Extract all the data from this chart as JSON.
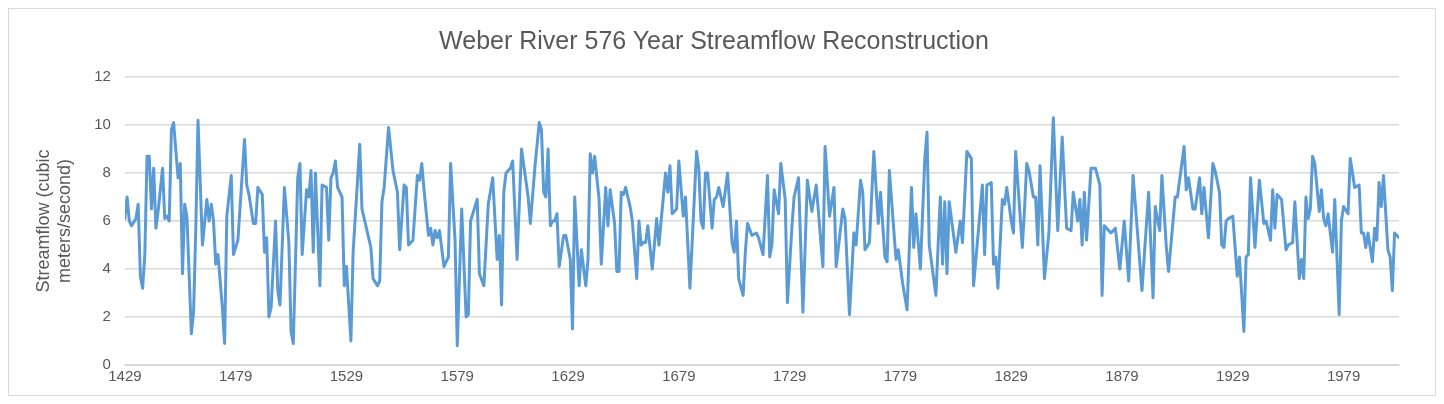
{
  "chart_data": {
    "type": "line",
    "title": "Weber River 576 Year Streamflow Reconstruction",
    "ylabel": "Streamflow (cubic meters/second)",
    "xlim": [
      1429,
      2004
    ],
    "xticks": [
      1429,
      1479,
      1529,
      1579,
      1629,
      1679,
      1729,
      1779,
      1829,
      1879,
      1929,
      1979
    ],
    "ylim": [
      0,
      12
    ],
    "yticks": [
      0,
      2,
      4,
      6,
      8,
      10,
      12
    ],
    "grid": "y",
    "legend": false,
    "marker": "none",
    "line_style": "solid",
    "series": [
      {
        "color": "#5b9bd5",
        "x": [
          1429,
          1430,
          1431,
          1432,
          1434,
          1435,
          1436,
          1437,
          1438,
          1439,
          1440,
          1441,
          1442,
          1443,
          1444,
          1446,
          1447,
          1448,
          1449,
          1450,
          1451,
          1453,
          1454,
          1455,
          1456,
          1457,
          1459,
          1460,
          1461,
          1462,
          1464,
          1466,
          1467,
          1468,
          1469,
          1470,
          1471,
          1473,
          1474,
          1475,
          1477,
          1478,
          1480,
          1483,
          1484,
          1485,
          1487,
          1488,
          1489,
          1491,
          1492,
          1493,
          1494,
          1495,
          1497,
          1498,
          1499,
          1501,
          1503,
          1504,
          1505,
          1507,
          1508,
          1509,
          1511,
          1512,
          1513,
          1514,
          1515,
          1517,
          1518,
          1520,
          1521,
          1522,
          1523,
          1524,
          1525,
          1527,
          1528,
          1529,
          1531,
          1532,
          1535,
          1536,
          1540,
          1541,
          1543,
          1544,
          1545,
          1546,
          1548,
          1550,
          1552,
          1553,
          1555,
          1556,
          1557,
          1559,
          1561,
          1562,
          1563,
          1564,
          1566,
          1567,
          1568,
          1569,
          1570,
          1571,
          1573,
          1575,
          1576,
          1578,
          1579,
          1581,
          1583,
          1584,
          1585,
          1587,
          1588,
          1589,
          1591,
          1593,
          1595,
          1597,
          1598,
          1599,
          1600,
          1601,
          1603,
          1604,
          1606,
          1608,
          1611,
          1612,
          1614,
          1616,
          1617,
          1618,
          1619,
          1620,
          1621,
          1622,
          1623,
          1624,
          1625,
          1627,
          1628,
          1630,
          1631,
          1632,
          1634,
          1635,
          1637,
          1638,
          1639,
          1640,
          1641,
          1643,
          1644,
          1646,
          1647,
          1648,
          1650,
          1651,
          1652,
          1653,
          1654,
          1655,
          1657,
          1658,
          1660,
          1661,
          1662,
          1663,
          1664,
          1665,
          1667,
          1669,
          1670,
          1673,
          1674,
          1675,
          1676,
          1678,
          1679,
          1681,
          1682,
          1684,
          1687,
          1688,
          1689,
          1690,
          1691,
          1692,
          1694,
          1695,
          1696,
          1697,
          1699,
          1701,
          1703,
          1704,
          1705,
          1706,
          1708,
          1709,
          1710,
          1712,
          1714,
          1715,
          1717,
          1719,
          1720,
          1721,
          1722,
          1724,
          1725,
          1727,
          1728,
          1730,
          1731,
          1733,
          1735,
          1737,
          1739,
          1741,
          1744,
          1745,
          1747,
          1749,
          1750,
          1753,
          1754,
          1756,
          1758,
          1759,
          1761,
          1762,
          1763,
          1765,
          1767,
          1769,
          1770,
          1772,
          1773,
          1774,
          1777,
          1778,
          1780,
          1782,
          1784,
          1785,
          1786,
          1788,
          1790,
          1791,
          1792,
          1795,
          1797,
          1798,
          1799,
          1800,
          1801,
          1804,
          1806,
          1807,
          1809,
          1811,
          1812,
          1816,
          1817,
          1818,
          1820,
          1821,
          1822,
          1823,
          1825,
          1826,
          1827,
          1829,
          1830,
          1831,
          1834,
          1835,
          1836,
          1837,
          1839,
          1840,
          1841,
          1842,
          1844,
          1846,
          1848,
          1850,
          1852,
          1854,
          1856,
          1857,
          1859,
          1860,
          1861,
          1862,
          1863,
          1865,
          1867,
          1869,
          1870,
          1871,
          1874,
          1876,
          1878,
          1880,
          1882,
          1884,
          1886,
          1888,
          1891,
          1893,
          1894,
          1896,
          1897,
          1899,
          1900,
          1903,
          1904,
          1907,
          1908,
          1909,
          1911,
          1912,
          1914,
          1915,
          1916,
          1918,
          1920,
          1921,
          1923,
          1924,
          1925,
          1926,
          1927,
          1929,
          1931,
          1932,
          1934,
          1935,
          1936,
          1937,
          1939,
          1941,
          1943,
          1944,
          1946,
          1947,
          1948,
          1949,
          1951,
          1953,
          1954,
          1956,
          1957,
          1959,
          1960,
          1961,
          1962,
          1963,
          1964,
          1965,
          1966,
          1968,
          1969,
          1970,
          1971,
          1972,
          1974,
          1975,
          1977,
          1978,
          1979,
          1981,
          1982,
          1984,
          1986,
          1987,
          1988,
          1989,
          1990,
          1992,
          1993,
          1994,
          1995,
          1996,
          1997,
          1999,
          2000,
          2001,
          2002,
          2004
        ],
        "values": [
          6.1,
          7.0,
          6.0,
          5.8,
          6.1,
          6.7,
          3.7,
          3.2,
          4.6,
          8.7,
          8.7,
          6.5,
          8.2,
          5.7,
          6.4,
          8.2,
          6.1,
          6.2,
          6.0,
          9.8,
          10.1,
          7.8,
          8.4,
          3.8,
          6.7,
          6.2,
          1.3,
          2.2,
          5.7,
          10.2,
          5.0,
          6.9,
          6.0,
          6.7,
          6.0,
          4.2,
          4.6,
          2.4,
          0.9,
          6.2,
          7.9,
          4.6,
          5.2,
          9.4,
          7.5,
          7.1,
          5.9,
          5.9,
          7.4,
          7.1,
          4.7,
          5.3,
          2.0,
          2.4,
          6.0,
          3.1,
          2.5,
          7.4,
          5.1,
          1.4,
          0.9,
          7.8,
          8.4,
          4.6,
          7.3,
          7.0,
          8.1,
          4.7,
          8.0,
          3.3,
          7.5,
          7.4,
          5.2,
          7.8,
          8.0,
          8.5,
          7.4,
          7.0,
          3.3,
          4.1,
          1.0,
          4.7,
          9.2,
          6.5,
          4.9,
          3.6,
          3.3,
          3.5,
          6.8,
          7.4,
          9.9,
          8.1,
          7.2,
          4.8,
          7.5,
          7.4,
          5.0,
          5.2,
          7.9,
          7.7,
          8.4,
          7.3,
          5.4,
          5.7,
          5.0,
          5.6,
          5.3,
          5.6,
          4.1,
          4.5,
          8.4,
          5.2,
          0.8,
          6.5,
          2.0,
          2.1,
          6.0,
          6.6,
          6.9,
          3.8,
          3.3,
          6.7,
          7.8,
          4.4,
          5.4,
          2.5,
          7.2,
          8.0,
          8.2,
          8.5,
          4.4,
          9.0,
          7.0,
          5.9,
          8.2,
          10.1,
          9.8,
          7.2,
          7.0,
          9.0,
          5.8,
          6.0,
          6.0,
          6.3,
          4.1,
          5.4,
          5.4,
          4.4,
          1.5,
          7.0,
          3.3,
          4.8,
          3.3,
          4.4,
          8.8,
          8.0,
          8.7,
          6.9,
          4.2,
          7.4,
          5.8,
          7.3,
          5.9,
          3.9,
          3.9,
          7.2,
          7.1,
          7.4,
          6.6,
          6.0,
          3.6,
          6.0,
          5.0,
          5.1,
          5.1,
          5.8,
          4.0,
          6.1,
          5.0,
          8.0,
          7.2,
          8.3,
          6.3,
          6.5,
          8.5,
          6.2,
          7.0,
          3.2,
          8.9,
          8.2,
          6.0,
          5.7,
          8.0,
          8.0,
          5.7,
          6.9,
          7.0,
          7.4,
          6.6,
          8.0,
          5.1,
          4.7,
          6.0,
          3.6,
          2.9,
          4.7,
          5.9,
          5.4,
          5.5,
          5.3,
          4.6,
          7.9,
          4.5,
          5.0,
          7.3,
          6.3,
          8.4,
          6.9,
          2.6,
          5.7,
          7.0,
          7.8,
          2.2,
          7.7,
          6.4,
          7.5,
          4.1,
          9.1,
          6.2,
          7.4,
          4.1,
          6.5,
          6.1,
          2.1,
          5.5,
          5.0,
          7.7,
          7.2,
          4.8,
          5.1,
          8.9,
          5.9,
          7.2,
          4.5,
          4.3,
          8.1,
          4.4,
          4.8,
          3.4,
          2.3,
          7.4,
          4.9,
          6.3,
          4.0,
          8.6,
          9.7,
          5.0,
          2.9,
          7.0,
          4.2,
          6.8,
          3.8,
          6.8,
          4.7,
          6.0,
          5.1,
          8.9,
          8.6,
          3.3,
          7.5,
          4.6,
          7.5,
          7.6,
          4.2,
          4.5,
          3.2,
          6.9,
          6.7,
          7.4,
          6.0,
          5.5,
          8.9,
          4.9,
          6.5,
          8.4,
          8.1,
          7.0,
          7.0,
          5.0,
          8.3,
          3.6,
          5.5,
          10.3,
          5.6,
          9.5,
          5.7,
          5.6,
          7.2,
          6.0,
          6.9,
          5.0,
          7.2,
          5.2,
          8.2,
          8.2,
          7.5,
          2.9,
          5.8,
          5.5,
          5.7,
          4.0,
          6.0,
          3.5,
          7.9,
          5.5,
          3.1,
          7.2,
          2.8,
          6.6,
          5.6,
          7.9,
          4.9,
          3.9,
          7.0,
          7.0,
          9.1,
          7.3,
          7.8,
          6.5,
          6.5,
          7.8,
          6.3,
          7.4,
          5.3,
          8.4,
          8.1,
          7.2,
          5.0,
          4.9,
          6.0,
          6.1,
          6.2,
          3.7,
          4.5,
          1.4,
          4.5,
          4.6,
          7.8,
          4.9,
          7.7,
          5.9,
          6.0,
          5.2,
          7.3,
          5.7,
          7.1,
          6.9,
          4.8,
          5.0,
          5.1,
          6.8,
          3.6,
          4.4,
          3.6,
          7.0,
          6.1,
          6.5,
          8.7,
          8.4,
          6.4,
          7.3,
          6.1,
          5.8,
          6.3,
          4.7,
          6.9,
          2.1,
          6.0,
          6.6,
          6.3,
          8.6,
          7.4,
          7.5,
          5.5,
          5.5,
          4.9,
          5.5,
          4.3,
          5.7,
          5.2,
          7.6,
          6.6,
          7.9,
          4.8,
          4.5,
          3.1,
          5.5,
          5.3
        ]
      }
    ]
  }
}
